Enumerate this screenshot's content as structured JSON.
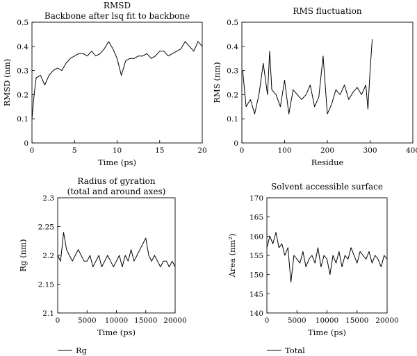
{
  "chart_data": [
    {
      "type": "line",
      "title_lines": [
        "RMSD",
        "Backbone after lsq fit to backbone"
      ],
      "xlabel": "Time (ps)",
      "ylabel": "RMSD (nm)",
      "xlim": [
        0,
        20
      ],
      "ylim": [
        0,
        0.5
      ],
      "xticks": [
        0,
        5,
        10,
        15,
        20
      ],
      "yticks": [
        0,
        0.1,
        0.2,
        0.3,
        0.4,
        0.5
      ],
      "xtick_labels": [
        "0",
        "5",
        "10",
        "15",
        "20"
      ],
      "ytick_labels": [
        "0",
        "0.1",
        "0.2",
        "0.3",
        "0.4",
        "0.5"
      ],
      "grid": false,
      "series": [
        {
          "color": "#000000",
          "x": [
            0,
            0.25,
            0.5,
            1,
            1.5,
            2,
            2.5,
            3,
            3.5,
            4,
            4.5,
            5,
            5.5,
            6,
            6.5,
            7,
            7.5,
            8,
            8.5,
            9,
            9.5,
            10,
            10.5,
            11,
            11.5,
            12,
            12.5,
            13,
            13.5,
            14,
            14.5,
            15,
            15.5,
            16,
            16.5,
            17,
            17.5,
            18,
            18.5,
            19,
            19.5,
            20
          ],
          "y": [
            0.1,
            0.2,
            0.27,
            0.28,
            0.24,
            0.28,
            0.3,
            0.31,
            0.3,
            0.33,
            0.35,
            0.36,
            0.37,
            0.37,
            0.36,
            0.38,
            0.36,
            0.37,
            0.39,
            0.42,
            0.39,
            0.35,
            0.28,
            0.34,
            0.35,
            0.35,
            0.36,
            0.36,
            0.37,
            0.35,
            0.36,
            0.38,
            0.38,
            0.36,
            0.37,
            0.38,
            0.39,
            0.42,
            0.4,
            0.38,
            0.42,
            0.4
          ]
        }
      ]
    },
    {
      "type": "line",
      "title_lines": [
        "RMS fluctuation"
      ],
      "xlabel": "Residue",
      "ylabel": "RMS (nm)",
      "xlim": [
        0,
        400
      ],
      "ylim": [
        0,
        0.5
      ],
      "xticks": [
        0,
        100,
        200,
        300,
        400
      ],
      "yticks": [
        0,
        0.1,
        0.2,
        0.3,
        0.4,
        0.5
      ],
      "xtick_labels": [
        "0",
        "100",
        "200",
        "300",
        "400"
      ],
      "ytick_labels": [
        "0",
        "0.1",
        "0.2",
        "0.3",
        "0.4",
        "0.5"
      ],
      "grid": false,
      "series": [
        {
          "color": "#000000",
          "x": [
            2,
            10,
            20,
            30,
            40,
            50,
            60,
            65,
            70,
            80,
            90,
            100,
            110,
            120,
            130,
            140,
            150,
            160,
            170,
            180,
            190,
            200,
            210,
            220,
            230,
            240,
            250,
            260,
            270,
            280,
            290,
            295,
            300,
            305
          ],
          "y": [
            0.3,
            0.15,
            0.18,
            0.12,
            0.2,
            0.33,
            0.2,
            0.38,
            0.22,
            0.2,
            0.15,
            0.26,
            0.12,
            0.22,
            0.2,
            0.18,
            0.2,
            0.24,
            0.15,
            0.19,
            0.36,
            0.12,
            0.16,
            0.22,
            0.2,
            0.24,
            0.18,
            0.21,
            0.23,
            0.2,
            0.24,
            0.14,
            0.3,
            0.43
          ]
        }
      ]
    },
    {
      "type": "line",
      "title_lines": [
        "Radius of gyration",
        "(total and around axes)"
      ],
      "xlabel": "Time (ps)",
      "ylabel": "Rg (nm)",
      "xlim": [
        0,
        20000
      ],
      "ylim": [
        2.1,
        2.3
      ],
      "xticks": [
        0,
        5000,
        10000,
        15000,
        20000
      ],
      "yticks": [
        2.1,
        2.15,
        2.2,
        2.25,
        2.3
      ],
      "xtick_labels": [
        "0",
        "5000",
        "10000",
        "15000",
        "20000"
      ],
      "ytick_labels": [
        "2.1",
        "2.15",
        "2.2",
        "2.25",
        "2.3"
      ],
      "grid": false,
      "series": [
        {
          "name": "Rg",
          "color": "#000000",
          "x": [
            0,
            500,
            1000,
            1500,
            2000,
            2500,
            3000,
            3500,
            4000,
            4500,
            5000,
            5500,
            6000,
            6500,
            7000,
            7500,
            8000,
            8500,
            9000,
            9500,
            10000,
            10500,
            11000,
            11500,
            12000,
            12500,
            13000,
            13500,
            14000,
            14500,
            15000,
            15500,
            16000,
            16500,
            17000,
            17500,
            18000,
            18500,
            19000,
            19500,
            20000
          ],
          "y": [
            2.2,
            2.19,
            2.24,
            2.21,
            2.2,
            2.19,
            2.2,
            2.21,
            2.2,
            2.19,
            2.19,
            2.2,
            2.18,
            2.19,
            2.2,
            2.18,
            2.19,
            2.2,
            2.19,
            2.18,
            2.19,
            2.2,
            2.18,
            2.2,
            2.19,
            2.21,
            2.19,
            2.2,
            2.21,
            2.22,
            2.23,
            2.2,
            2.19,
            2.2,
            2.19,
            2.18,
            2.19,
            2.19,
            2.18,
            2.19,
            2.18
          ]
        }
      ]
    },
    {
      "type": "line",
      "title_lines": [
        "Solvent accessible surface"
      ],
      "xlabel": "Time (ps)",
      "ylabel": "Area (nm²)",
      "xlim": [
        0,
        20000
      ],
      "ylim": [
        140,
        170
      ],
      "xticks": [
        0,
        5000,
        10000,
        15000,
        20000
      ],
      "yticks": [
        140,
        145,
        150,
        155,
        160,
        165,
        170
      ],
      "xtick_labels": [
        "0",
        "5000",
        "10000",
        "15000",
        "20000"
      ],
      "ytick_labels": [
        "140",
        "145",
        "150",
        "155",
        "160",
        "165",
        "170"
      ],
      "grid": false,
      "series": [
        {
          "name": "Total",
          "color": "#000000",
          "x": [
            0,
            500,
            1000,
            1500,
            2000,
            2500,
            3000,
            3500,
            4000,
            4500,
            5000,
            5500,
            6000,
            6500,
            7000,
            7500,
            8000,
            8500,
            9000,
            9500,
            10000,
            10500,
            11000,
            11500,
            12000,
            12500,
            13000,
            13500,
            14000,
            14500,
            15000,
            15500,
            16000,
            16500,
            17000,
            17500,
            18000,
            18500,
            19000,
            19500,
            20000
          ],
          "y": [
            157,
            160,
            158,
            161,
            157,
            158,
            155,
            157,
            148,
            155,
            154,
            153,
            156,
            152,
            154,
            155,
            153,
            157,
            152,
            155,
            154,
            150,
            155,
            153,
            156,
            152,
            155,
            154,
            157,
            155,
            153,
            156,
            155,
            154,
            156,
            153,
            155,
            154,
            152,
            155,
            154
          ]
        }
      ]
    }
  ]
}
